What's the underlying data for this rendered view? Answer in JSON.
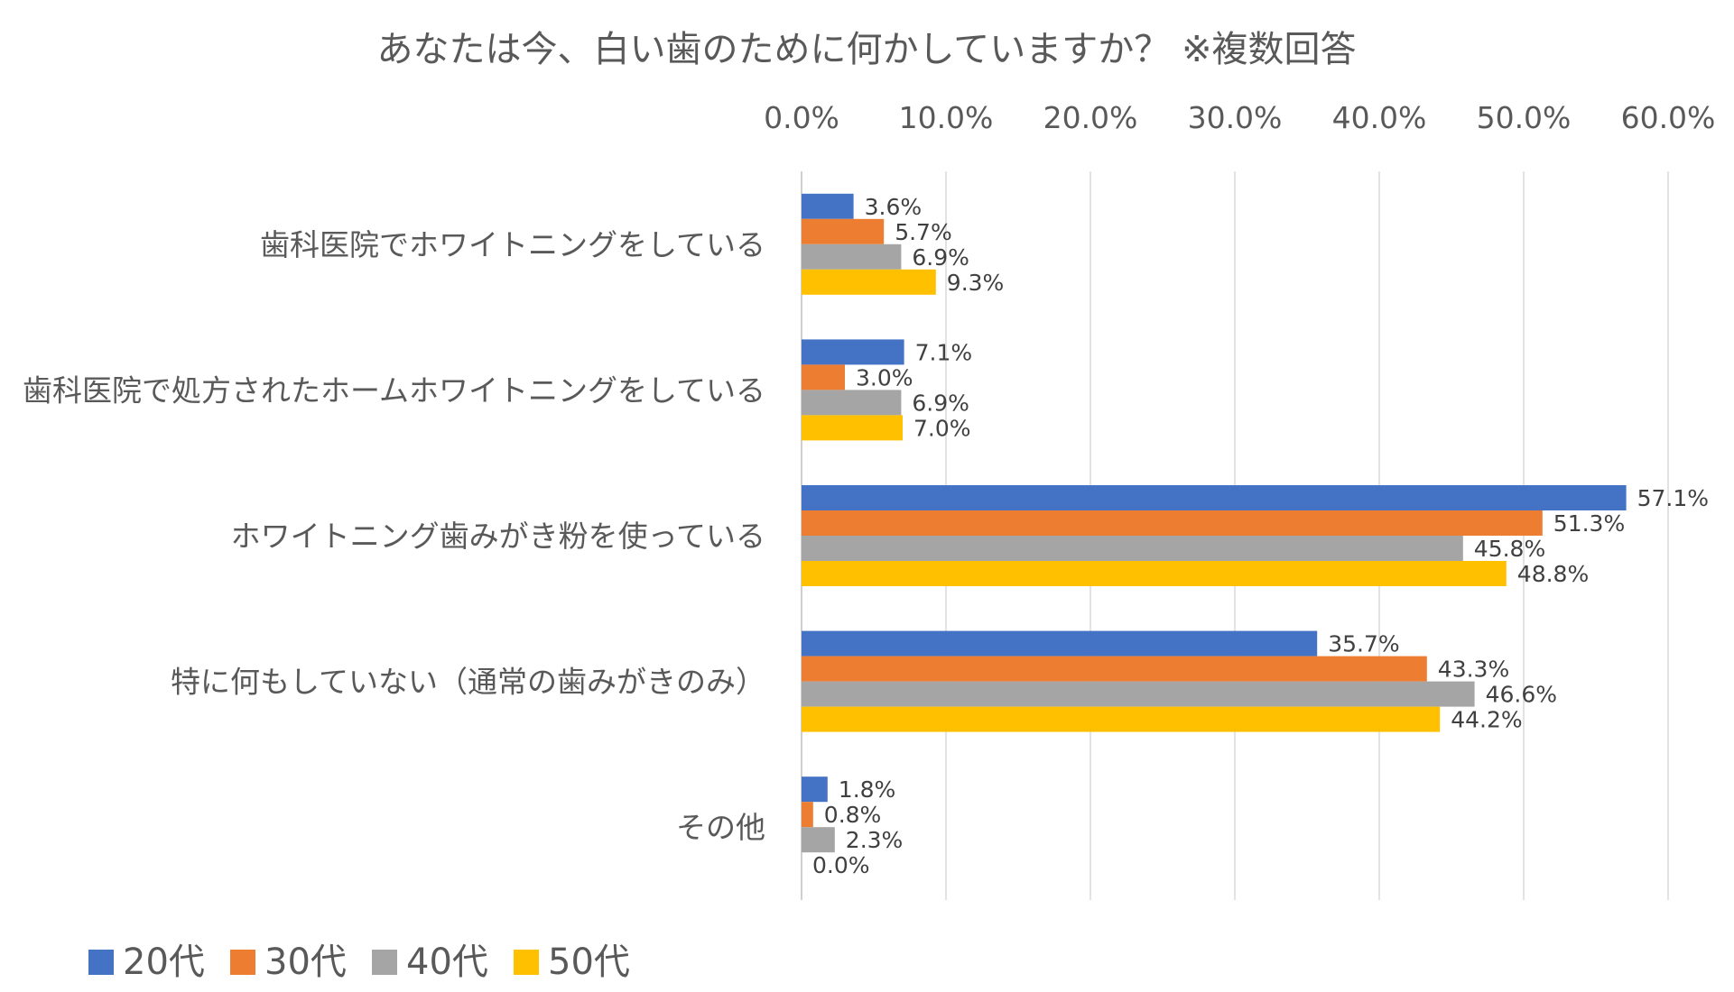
{
  "chart_data": {
    "type": "bar",
    "orientation": "horizontal",
    "title": "あなたは今、白い歯のために何かしていますか？ ※複数回答",
    "categories": [
      "歯科医院でホワイトニングをしている",
      "歯科医院で処方されたホームホワイトニングをしている",
      "ホワイトニング歯みがき粉を使っている",
      "特に何もしていない（通常の歯みがきのみ）",
      "その他"
    ],
    "series": [
      {
        "name": "20代",
        "color": "#4472C4",
        "values": [
          3.6,
          7.1,
          57.1,
          35.7,
          1.8
        ]
      },
      {
        "name": "30代",
        "color": "#ED7D31",
        "values": [
          5.7,
          3.0,
          51.3,
          43.3,
          0.8
        ]
      },
      {
        "name": "40代",
        "color": "#A5A5A5",
        "values": [
          6.9,
          6.9,
          45.8,
          46.6,
          2.3
        ]
      },
      {
        "name": "50代",
        "color": "#FFC000",
        "values": [
          9.3,
          7.0,
          48.8,
          44.2,
          0.0
        ]
      }
    ],
    "xlim": [
      0,
      60
    ],
    "xticks": [
      "0.0%",
      "10.0%",
      "20.0%",
      "30.0%",
      "40.0%",
      "50.0%",
      "60.0%"
    ],
    "tick_values": [
      0,
      10,
      20,
      30,
      40,
      50,
      60
    ],
    "data_labels": [
      [
        "3.6%",
        "7.1%",
        "57.1%",
        "35.7%",
        "1.8%"
      ],
      [
        "5.7%",
        "3.0%",
        "51.3%",
        "43.3%",
        "0.8%"
      ],
      [
        "6.9%",
        "6.9%",
        "45.8%",
        "46.6%",
        "2.3%"
      ],
      [
        "9.3%",
        "7.0%",
        "48.8%",
        "44.2%",
        "0.0%"
      ]
    ],
    "axis_position": "top",
    "grid": true,
    "legend_position": "bottom-left"
  }
}
